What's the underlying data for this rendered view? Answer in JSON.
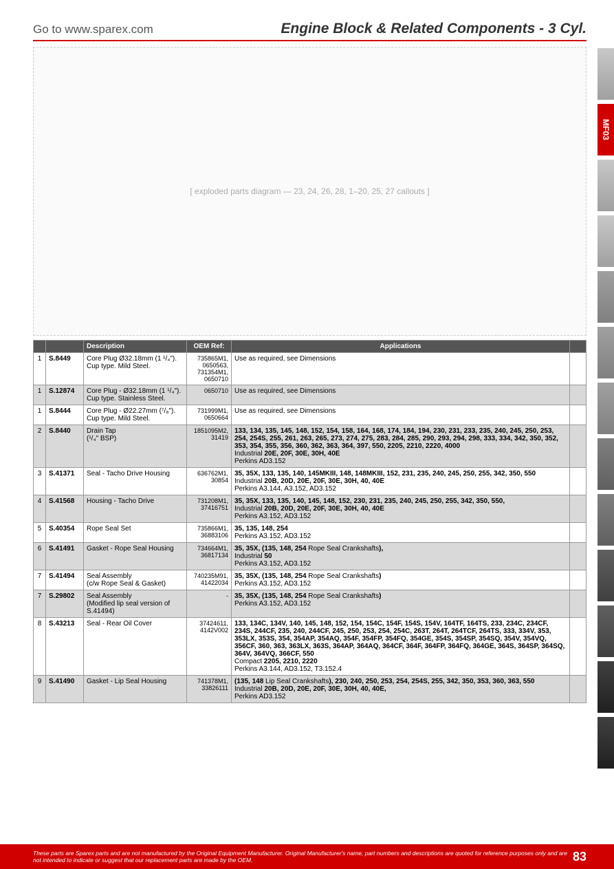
{
  "header": {
    "goto": "Go to www.sparex.com",
    "title": "Engine Block & Related Components - 3 Cyl."
  },
  "diagram_placeholder": "[ exploded parts diagram — 23, 24, 26, 28, 1–20, 25, 27 callouts ]",
  "side_tab_label": "MF03",
  "columns": {
    "n": "",
    "sku": "",
    "desc": "Description",
    "oem": "OEM Ref:",
    "app": "Applications",
    "end": ""
  },
  "rows": [
    {
      "n": "1",
      "sku": "S.8449",
      "desc": "Core Plug Ø32.18mm (1 ¹/₄\").\nCup type. Mild Steel.",
      "oem": "735865M1, 0650563, 731354M1, 0650710",
      "app": "Use as required, see Dimensions",
      "alt": false
    },
    {
      "n": "1",
      "sku": "S.12874",
      "desc": "Core Plug - Ø32.18mm (1 ¹/₄\").\nCup type.  Stainless Steel.",
      "oem": "0650710",
      "app": "Use as required, see Dimensions",
      "alt": true
    },
    {
      "n": "1",
      "sku": "S.8444",
      "desc": "Core Plug - Ø22.27mm (⁷/₈\").\nCup type.  Mild Steel.",
      "oem": "731999M1, 0650664",
      "app": "Use as required, see Dimensions",
      "alt": false
    },
    {
      "n": "2",
      "sku": "S.8440",
      "desc": "Drain Tap\n(¹/₄\" BSP)",
      "oem": "1851095M2, 31419",
      "app": "<b>133, 134, 135, 145, 148, 152, 154, 158, 164, 168, 174, 184, 194, 230, 231, 233, 235, 240, 245, 250, 253, 254, 254S, 255, 261, 263, 265, 273, 274, 275, 283, 284, 285, 290, 293, 294, 298, 333, 334, 342, 350, 352, 353, 354, 355, 356, 360, 362, 363, 364, 397, 550, 2205, 2210, 2220, 4000</b><br>Industrial <b>20E, 20F, 30E, 30H, 40E</b><br>Perkins AD3.152",
      "alt": true
    },
    {
      "n": "3",
      "sku": "S.41371",
      "desc": "Seal - Tacho Drive Housing",
      "oem": "636762M1, 30854",
      "app": "<b>35, 35X, 133, 135, 140, 145MKIII, 148, 148MKIII, 152, 231, 235, 240, 245, 250, 255, 342, 350, 550</b><br>Industrial <b>20B, 20D, 20E, 20F, 30E, 30H, 40, 40E</b><br>Perkins A3.144, A3.152, AD3.152",
      "alt": false
    },
    {
      "n": "4",
      "sku": "S.41568",
      "desc": "Housing - Tacho Drive",
      "oem": "731208M1, 37416751",
      "app": "<b>35, 35X, 133, 135, 140, 145, 148, 152, 230, 231, 235, 240, 245, 250, 255, 342, 350, 550,</b><br>Industrial <b>20B, 20D, 20E, 20F, 30E, 30H, 40, 40E</b><br>Perkins A3.152, AD3.152",
      "alt": true
    },
    {
      "n": "5",
      "sku": "S.40354",
      "desc": "Rope Seal Set",
      "oem": "735866M1, 36883106",
      "app": "<b>35, 135, 148, 254</b><br>Perkins A3.152, AD3.152",
      "alt": false
    },
    {
      "n": "6",
      "sku": "S.41491",
      "desc": "Gasket - Rope Seal Housing",
      "oem": "734664M1, 36817134",
      "app": "<b>35, 35X, (135, 148, 254</b> Rope Seal Crankshafts<b>),</b><br>Industrial <b>50</b><br>Perkins A3.152, AD3.152",
      "alt": true
    },
    {
      "n": "7",
      "sku": "S.41494",
      "desc": "Seal Assembly\n(c/w Rope Seal & Gasket)",
      "oem": "740235M91, 41422034",
      "app": "<b>35, 35X, (135, 148, 254</b> Rope Seal Crankshafts<b>)</b><br>Perkins A3.152, AD3.152",
      "alt": false
    },
    {
      "n": "7",
      "sku": "S.29802",
      "desc": "Seal Assembly\n(Modified lip seal version of S.41494)",
      "oem": "-",
      "app": "<b>35, 35X, (135, 148, 254</b> Rope Seal Crankshafts<b>)</b><br>Perkins A3.152, AD3.152",
      "alt": true
    },
    {
      "n": "8",
      "sku": "S.43213",
      "desc": "Seal - Rear Oil Cover",
      "oem": "37424611, 4142V002",
      "app": "<b>133, 134C, 134V, 140, 145, 148, 152, 154, 154C, 154F, 154S, 154V, 164TF, 164TS, 233, 234C, 234CF, 234S, 244CF, 235, 240, 244CF, 245, 250, 253, 254, 254C, 263T, 264T, 264TCF, 264TS, 333, 334V, 353, 353LX, 353S, 354, 354AP, 354AQ, 354F, 354FP, 354FQ, 354GE, 354S, 354SP, 354SQ, 354V, 354VQ, 356CF, 360, 363, 363LX, 363S, 364AP, 364AQ, 364CF, 364F, 364FP, 364FQ, 364GE, 364S, 364SP, 364SQ, 364V, 364VQ, 366CF, 550</b><br>Compact <b>2205, 2210, 2220</b><br>Perkins A3.144, AD3.152, T3.152.4",
      "alt": false
    },
    {
      "n": "9",
      "sku": "S.41490",
      "desc": "Gasket - Lip Seal Housing",
      "oem": "741378M1, 33826111",
      "app": "<b>(135, 148</b> Lip Seal Crankshafts<b>), 230, 240, 250, 253, 254, 254S, 255, 342, 350, 353, 360, 363, 550</b><br>Industrial <b>20B, 20D, 20E, 20F, 30E, 30H, 40, 40E,</b><br>Perkins AD3.152",
      "alt": true
    }
  ],
  "footer": {
    "disclaimer": "These parts are Sparex parts and are not manufactured by the Original Equipment Manufacturer. Original Manufacturer's name, part numbers and descriptions are quoted for reference purposes only and are not intended to indicate or suggest that our replacement parts are made by the OEM.",
    "page": "83"
  }
}
